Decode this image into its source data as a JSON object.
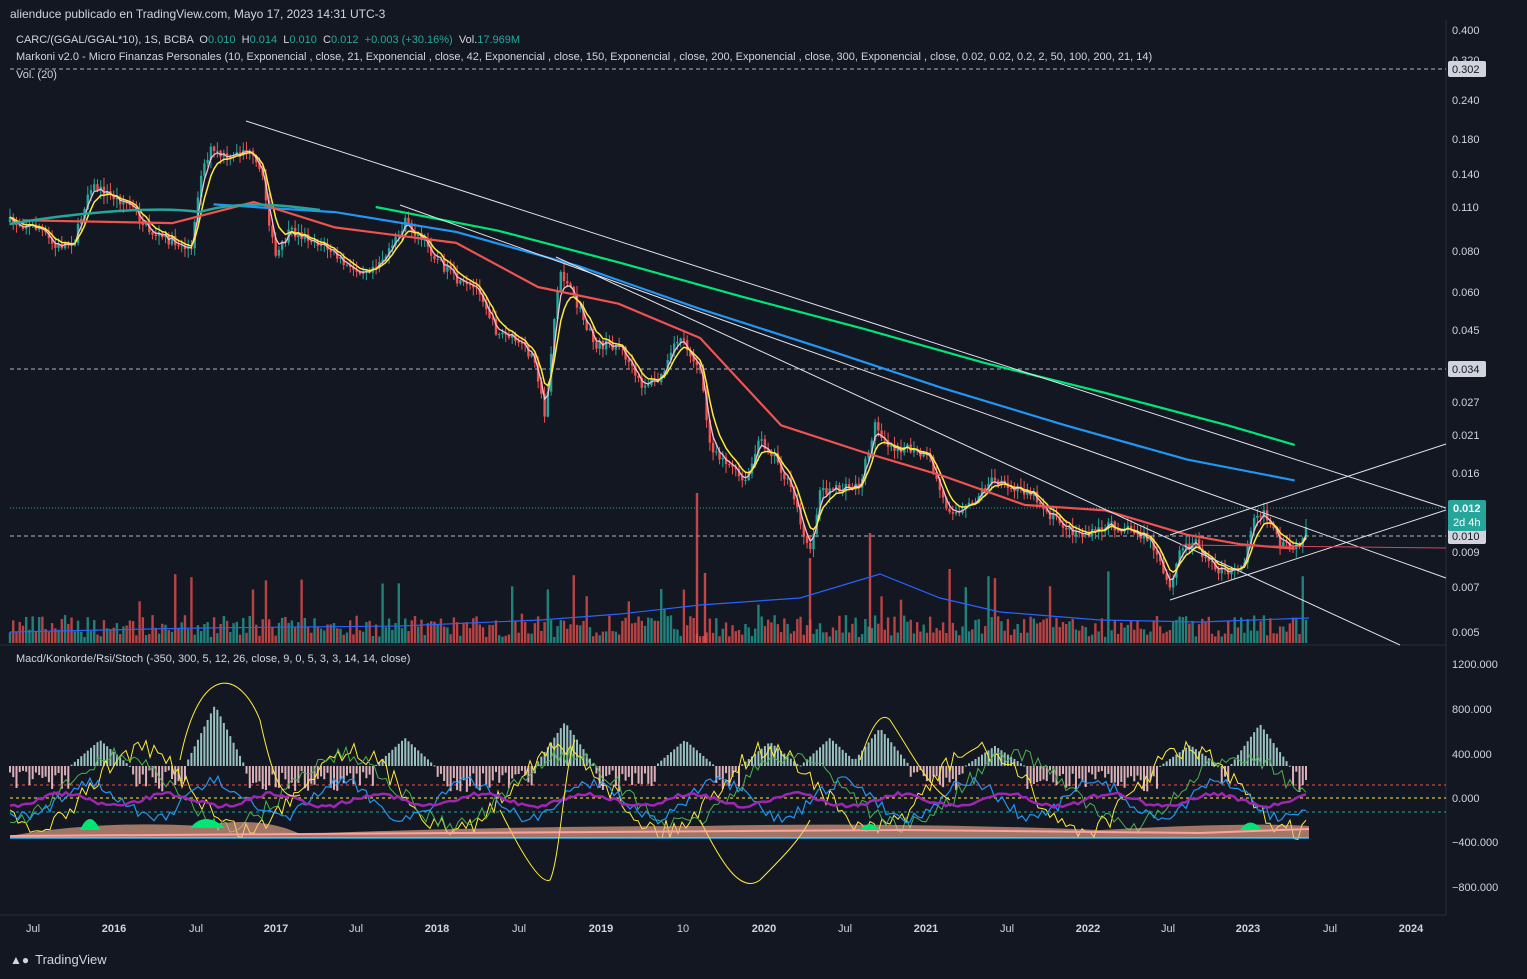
{
  "header": {
    "published": "alienduce publicado en TradingView.com, Mayo 17, 2023 14:31 UTC-3"
  },
  "legend": {
    "symbol": "CARC/(GGAL/GGAL*10), 1S, BCBA",
    "o_label": "O",
    "o_value": "0.010",
    "h_label": "H",
    "h_value": "0.014",
    "l_label": "L",
    "l_value": "0.010",
    "c_label": "C",
    "c_value": "0.012",
    "change": "+0.003 (+30.16%)",
    "vol_label": "Vol.",
    "vol_value": "17.969M",
    "indicator": "Markoni v2.0 - Micro Finanzas Personales (10, Exponencial , close, 21, Exponencial , close, 42, Exponencial , close, 150, Exponencial , close, 200, Exponencial , close, 300, Exponencial , close, 0.02, 0.02, 0.2, 2, 50, 100, 200, 21, 14)",
    "volume": "Vol. (20)",
    "oscillator": "Macd/Konkorde/Rsi/Stoch (-350, 300, 5, 12, 26, close, 9, 0, 5, 3, 3, 14, 14, close)"
  },
  "price_axis": [
    "0.400",
    "0.320",
    "0.240",
    "0.180",
    "0.140",
    "0.110",
    "0.080",
    "0.060",
    "0.045",
    "0.034",
    "0.027",
    "0.021",
    "0.016",
    "0.012",
    "0.009",
    "0.007",
    "0.005"
  ],
  "price_tags": {
    "top_line": "0.302",
    "mid_line": "0.034",
    "last_price": "0.012",
    "countdown": "2d 4h",
    "support": "0.010"
  },
  "osc_axis": [
    "1200.000",
    "800.000",
    "400.000",
    "0.000",
    "−400.000",
    "−800.000"
  ],
  "time_axis": [
    "Jul",
    "2016",
    "Jul",
    "2017",
    "Jul",
    "2018",
    "Jul",
    "2019",
    "10",
    "2020",
    "Jul",
    "2021",
    "Jul",
    "2022",
    "Jul",
    "2023",
    "Jul",
    "2024"
  ],
  "footer": {
    "brand": "TradingView"
  },
  "colors": {
    "background": "#131722",
    "up": "#26a69a",
    "down": "#ef5350",
    "ema10": "#f8bbd0",
    "ema21": "#ffeb3b",
    "ema42": "#ef5350",
    "ema150": "#26a69a",
    "ema200": "#2196f3",
    "ema300": "#00e676"
  },
  "chart_data": {
    "type": "candlestick",
    "scale": "log",
    "x_range": [
      "2015-06",
      "2024-04"
    ],
    "ylim": [
      0.0048,
      0.42
    ],
    "series": [
      {
        "name": "EMA 300",
        "dates": [
          "2017-09",
          "2018-06",
          "2019-03",
          "2019-12",
          "2020-09",
          "2021-06",
          "2022-03",
          "2022-12",
          "2023-05"
        ],
        "values": [
          0.11,
          0.093,
          0.074,
          0.058,
          0.046,
          0.036,
          0.029,
          0.023,
          0.02
        ]
      },
      {
        "name": "EMA 200",
        "dates": [
          "2016-09",
          "2017-06",
          "2018-03",
          "2018-12",
          "2019-09",
          "2020-06",
          "2021-03",
          "2021-12",
          "2022-09",
          "2023-05"
        ],
        "values": [
          0.112,
          0.106,
          0.092,
          0.072,
          0.053,
          0.04,
          0.03,
          0.023,
          0.018,
          0.0155
        ]
      },
      {
        "name": "EMA 42",
        "dates": [
          "2015-07",
          "2016-06",
          "2016-12",
          "2017-06",
          "2018-03",
          "2018-09",
          "2019-03",
          "2019-09",
          "2020-03",
          "2020-09",
          "2021-03",
          "2021-09",
          "2022-03",
          "2022-09",
          "2023-01",
          "2023-05"
        ],
        "values": [
          0.1,
          0.098,
          0.114,
          0.095,
          0.085,
          0.062,
          0.055,
          0.043,
          0.023,
          0.019,
          0.016,
          0.013,
          0.0125,
          0.0105,
          0.0098,
          0.0095
        ]
      }
    ],
    "horizontal_levels": [
      0.302,
      0.034,
      0.01,
      0.012
    ],
    "last": {
      "open": 0.01,
      "high": 0.014,
      "low": 0.01,
      "close": 0.012
    }
  }
}
